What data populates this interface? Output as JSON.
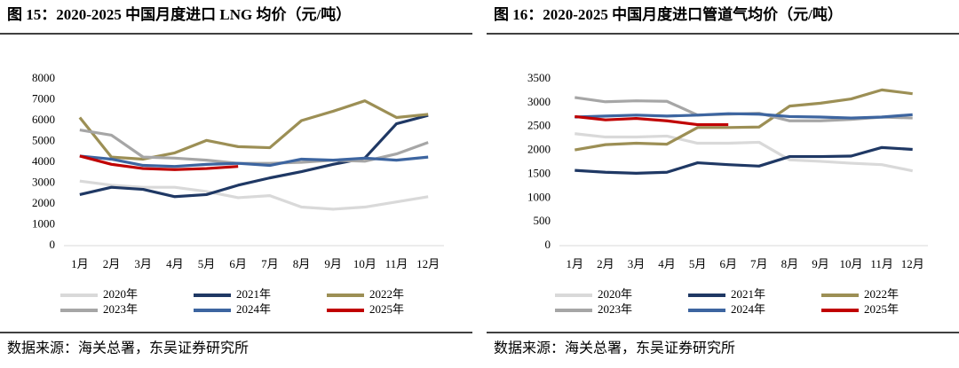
{
  "chart_data": [
    {
      "type": "line",
      "title": "图 15：2020-2025 中国月度进口 LNG 均价（元/吨）",
      "source": "数据来源：海关总署，东吴证券研究所",
      "categories": [
        "1月",
        "2月",
        "3月",
        "4月",
        "5月",
        "6月",
        "7月",
        "8月",
        "9月",
        "10月",
        "11月",
        "12月"
      ],
      "ylim": [
        0,
        8000
      ],
      "yticks": [
        0,
        1000,
        2000,
        3000,
        4000,
        5000,
        6000,
        7000,
        8000
      ],
      "grid": false,
      "series": [
        {
          "name": "2020年",
          "color": "#d9d9d9",
          "values": [
            3100,
            2900,
            2800,
            2800,
            2600,
            2300,
            2400,
            1850,
            1750,
            1850,
            2100,
            2350
          ]
        },
        {
          "name": "2021年",
          "color": "#1f3864",
          "values": [
            2450,
            2800,
            2700,
            2350,
            2450,
            2900,
            3250,
            3550,
            3900,
            4200,
            5850,
            6250
          ]
        },
        {
          "name": "2022年",
          "color": "#9c8f55",
          "values": [
            6150,
            4250,
            4150,
            4450,
            5050,
            4750,
            4700,
            6000,
            6450,
            6950,
            6150,
            6300
          ]
        },
        {
          "name": "2023年",
          "color": "#a6a6a6",
          "values": [
            5550,
            5300,
            4250,
            4200,
            4100,
            3950,
            3950,
            4000,
            4100,
            4050,
            4400,
            4950
          ]
        },
        {
          "name": "2024年",
          "color": "#3d65a0",
          "values": [
            4300,
            4150,
            3850,
            3800,
            3900,
            3950,
            3850,
            4150,
            4100,
            4200,
            4100,
            4250
          ]
        },
        {
          "name": "2025年",
          "color": "#c00000",
          "values": [
            4300,
            3900,
            3700,
            3650,
            3700,
            3800,
            null,
            null,
            null,
            null,
            null,
            null
          ]
        }
      ]
    },
    {
      "type": "line",
      "title": "图 16：2020-2025 中国月度进口管道气均价（元/吨）",
      "source": "数据来源：海关总署，东吴证券研究所",
      "categories": [
        "1月",
        "2月",
        "3月",
        "4月",
        "5月",
        "6月",
        "7月",
        "8月",
        "9月",
        "10月",
        "11月",
        "12月"
      ],
      "ylim": [
        0,
        3500
      ],
      "yticks": [
        0,
        500,
        1000,
        1500,
        2000,
        2500,
        3000,
        3500
      ],
      "grid": false,
      "series": [
        {
          "name": "2020年",
          "color": "#d9d9d9",
          "values": [
            2350,
            2280,
            2280,
            2300,
            2150,
            2150,
            2170,
            1800,
            1770,
            1730,
            1700,
            1570
          ]
        },
        {
          "name": "2021年",
          "color": "#1f3864",
          "values": [
            1580,
            1540,
            1520,
            1540,
            1740,
            1700,
            1670,
            1870,
            1870,
            1880,
            2060,
            2020
          ]
        },
        {
          "name": "2022年",
          "color": "#9c8f55",
          "values": [
            2010,
            2120,
            2150,
            2130,
            2480,
            2480,
            2490,
            2930,
            2990,
            3080,
            3270,
            3190
          ]
        },
        {
          "name": "2023年",
          "color": "#a6a6a6",
          "values": [
            3110,
            3020,
            3040,
            3030,
            2740,
            2760,
            2780,
            2620,
            2620,
            2650,
            2700,
            2680
          ]
        },
        {
          "name": "2024年",
          "color": "#3d65a0",
          "values": [
            2700,
            2720,
            2740,
            2720,
            2740,
            2770,
            2760,
            2710,
            2700,
            2680,
            2700,
            2750
          ]
        },
        {
          "name": "2025年",
          "color": "#c00000",
          "values": [
            2710,
            2640,
            2670,
            2620,
            2540,
            2540,
            null,
            null,
            null,
            null,
            null,
            null
          ]
        }
      ]
    }
  ]
}
